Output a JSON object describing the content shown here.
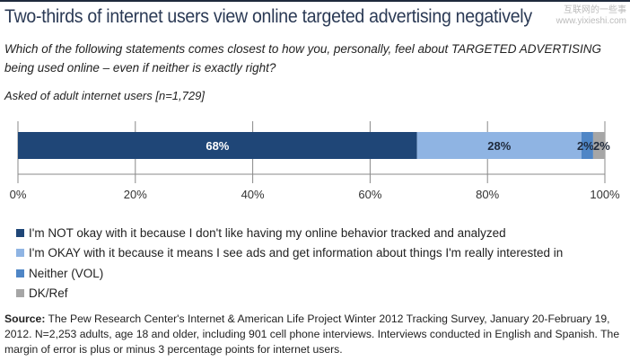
{
  "watermark": [
    "互联网的一些事",
    "www.yixieshi.com"
  ],
  "chart_data": {
    "type": "bar",
    "orientation": "horizontal-stacked",
    "title": "Two-thirds of internet users view online targeted advertising negatively",
    "subtitle": "Which of the following statements comes closest to how you, personally, feel about TARGETED ADVERTISING being used online – even if neither is exactly right?",
    "note": "Asked of adult internet users [n=1,729]",
    "xlim": [
      0,
      100
    ],
    "ticks": [
      "0%",
      "20%",
      "40%",
      "60%",
      "80%",
      "100%"
    ],
    "tick_values": [
      0,
      20,
      40,
      60,
      80,
      100
    ],
    "series": [
      {
        "name": "I'm NOT okay with it because I don't like having my online behavior tracked and analyzed",
        "value": 68,
        "label": "68%",
        "color": "#1f4677",
        "label_color": "#ffffff"
      },
      {
        "name": "I'm OKAY with it because it means I see ads and get information about things I'm really interested in",
        "value": 28,
        "label": "28%",
        "color": "#8fb4e3",
        "label_color": "#1f2a3c"
      },
      {
        "name": "Neither (VOL)",
        "value": 2,
        "label": "2%",
        "color": "#4f86c6",
        "label_color": "#1f2a3c"
      },
      {
        "name": "DK/Ref",
        "value": 2,
        "label": "2%",
        "color": "#a6a6a6",
        "label_color": "#1f2a3c"
      }
    ],
    "legend": "bottom-left"
  },
  "source": {
    "label": "Source:",
    "text": " The Pew Research Center's Internet & American Life Project Winter 2012 Tracking Survey, January 20-February 19, 2012. N=2,253 adults, age 18 and older, including 901 cell phone interviews. Interviews conducted in English and Spanish. The margin of error is plus or minus 3 percentage points for internet users."
  }
}
